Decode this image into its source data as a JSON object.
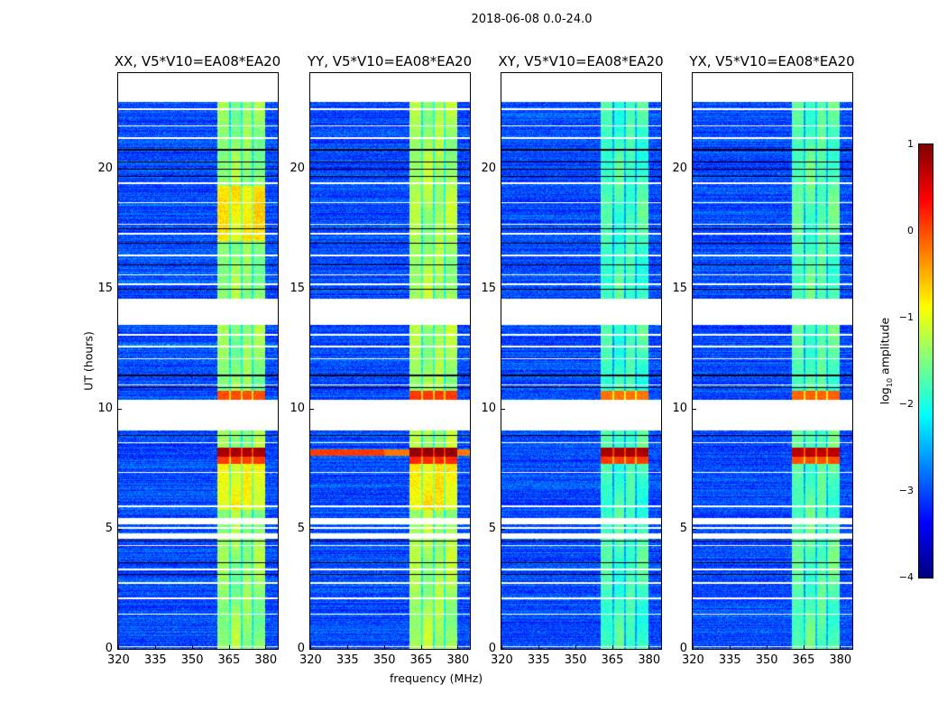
{
  "figure": {
    "suptitle": "2018-06-08 0.0-24.0",
    "xlabel": "frequency (MHz)",
    "ylabel": "UT (hours)",
    "colorbar_label_main": "log",
    "colorbar_label_sub": "10",
    "colorbar_label_rest": " amplitude"
  },
  "chart_data": {
    "type": "heatmap",
    "colormap": "jet",
    "panels": [
      {
        "title": "XX, V5*V10=EA08*EA20",
        "band_level": -1.4,
        "event_level": 0.8,
        "rfi_early_level": 0.0,
        "fullwidth_event": false
      },
      {
        "title": "YY, V5*V10=EA08*EA20",
        "band_level": -1.3,
        "event_level": 0.9,
        "rfi_early_level": 0.1,
        "fullwidth_event": true
      },
      {
        "title": "XY, V5*V10=EA08*EA20",
        "band_level": -1.8,
        "event_level": 0.8,
        "rfi_early_level": -0.2,
        "fullwidth_event": false
      },
      {
        "title": "YX, V5*V10=EA08*EA20",
        "band_level": -1.7,
        "event_level": 0.7,
        "rfi_early_level": -0.1,
        "fullwidth_event": false
      }
    ],
    "xlim": [
      320,
      385
    ],
    "ylim": [
      0,
      24
    ],
    "xticks": [
      "320",
      "335",
      "350",
      "365",
      "380"
    ],
    "xtick_values": [
      320,
      335,
      350,
      365,
      380
    ],
    "yticks": [
      "0",
      "5",
      "10",
      "15",
      "20"
    ],
    "ytick_values": [
      0,
      5,
      10,
      15,
      20
    ],
    "background_level": -3.0,
    "rfi_band_mhz": [
      360.5,
      380.0
    ],
    "rfi_subband_gaps_mhz": [
      365.6,
      370.2,
      374.8
    ],
    "strong_event_hours": [
      7.7,
      8.4
    ],
    "secondary_event_hours": [
      10.4,
      10.75
    ],
    "flagged_blocks_hours": [
      [
        22.8,
        24.0
      ],
      [
        13.5,
        14.6
      ],
      [
        9.1,
        10.4
      ],
      [
        5.2,
        5.45
      ],
      [
        4.6,
        4.8
      ]
    ],
    "flagged_lines_hours": [
      0.1,
      1.45,
      2.1,
      2.75,
      3.3,
      4.3,
      5.05,
      5.95,
      7.35,
      8.6,
      11.0,
      12.1,
      12.6,
      13.1,
      15.2,
      15.6,
      16.4,
      17.3,
      17.7,
      18.6,
      19.4,
      21.3,
      21.8,
      22.5
    ],
    "zero_lines_hours": [
      3.1,
      3.6,
      4.5,
      5.3,
      8.9,
      10.9,
      11.4,
      15.0,
      16.0,
      16.9,
      17.5,
      19.7,
      20.0,
      20.3,
      20.8
    ],
    "colorbar": {
      "range": [
        -4,
        1
      ],
      "ticks": [
        "1",
        "0",
        "−1",
        "−2",
        "−3",
        "−4"
      ],
      "tick_values": [
        1,
        0,
        -1,
        -2,
        -3,
        -4
      ]
    }
  }
}
